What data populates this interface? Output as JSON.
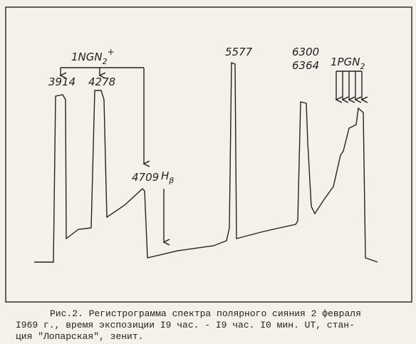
{
  "labels": {
    "band1": {
      "text": "1NGN",
      "sub": "2",
      "sup": "+"
    },
    "l3914": "3914",
    "l4278": "4278",
    "l4709": "4709",
    "hbeta": {
      "text": "H",
      "sub": "β"
    },
    "l5577": "5577",
    "l6300": "6300",
    "l6364": "6364",
    "band2": {
      "text": "1PGN",
      "sub": "2"
    }
  },
  "caption": {
    "lines": [
      "Рис.2. Регистрограмма спектра полярного сияния 2 февраля",
      "I969 г., время экспозиции I9 час. - I9 час. I0 мин. UT, стан-",
      "ция \"Лопарская\", зенит."
    ]
  }
}
